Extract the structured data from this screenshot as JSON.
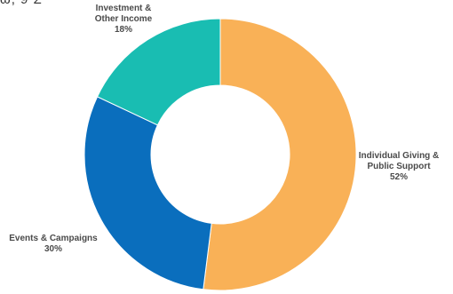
{
  "header_fragment": "ω, 9 Σ",
  "chart_data": {
    "type": "pie",
    "variant": "donut",
    "title": "",
    "legend": "none",
    "slices": [
      {
        "label_lines": [
          "Individual Giving &",
          "Public Support"
        ],
        "value": 52,
        "value_label": "52%",
        "color": "#F9B157"
      },
      {
        "label_lines": [
          "Events & Campaigns"
        ],
        "value": 30,
        "value_label": "30%",
        "color": "#0A6EBD"
      },
      {
        "label_lines": [
          "Investment &",
          "Other Income"
        ],
        "value": 18,
        "value_label": "18%",
        "color": "#19BDB2"
      }
    ]
  }
}
